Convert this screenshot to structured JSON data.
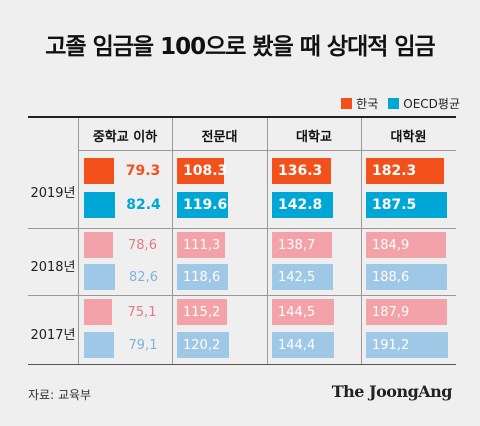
{
  "colors": {
    "korea_strong": "#f2511b",
    "oecd_strong": "#00a6d6",
    "korea_light": "#f2a2a8",
    "oecd_light": "#9fc7e6"
  },
  "chart_data": {
    "type": "table",
    "title": "고졸 임금을 100으로 봤을 때 상대적 임금",
    "legend": [
      "한국",
      "OECD평균"
    ],
    "legend_placement": "top-right",
    "columns": [
      "중학교 이하",
      "전문대",
      "대학교",
      "대학원"
    ],
    "rows": [
      {
        "year": "2019년",
        "korea": [
          "79.3",
          "108.3",
          "136.3",
          "182.3"
        ],
        "oecd": [
          "82.4",
          "119.6",
          "142.8",
          "187.5"
        ]
      },
      {
        "year": "2018년",
        "korea": [
          "78,6",
          "111,3",
          "138,7",
          "184,9"
        ],
        "oecd": [
          "82,6",
          "118,6",
          "142,5",
          "188,6"
        ]
      },
      {
        "year": "2017년",
        "korea": [
          "75,1",
          "115,2",
          "144,5",
          "187,9"
        ],
        "oecd": [
          "79,1",
          "120,2",
          "144,4",
          "191,2"
        ]
      }
    ],
    "scale_max": 200
  },
  "footer": {
    "source": "자료: 교육부",
    "brand": "The JoongAng"
  }
}
